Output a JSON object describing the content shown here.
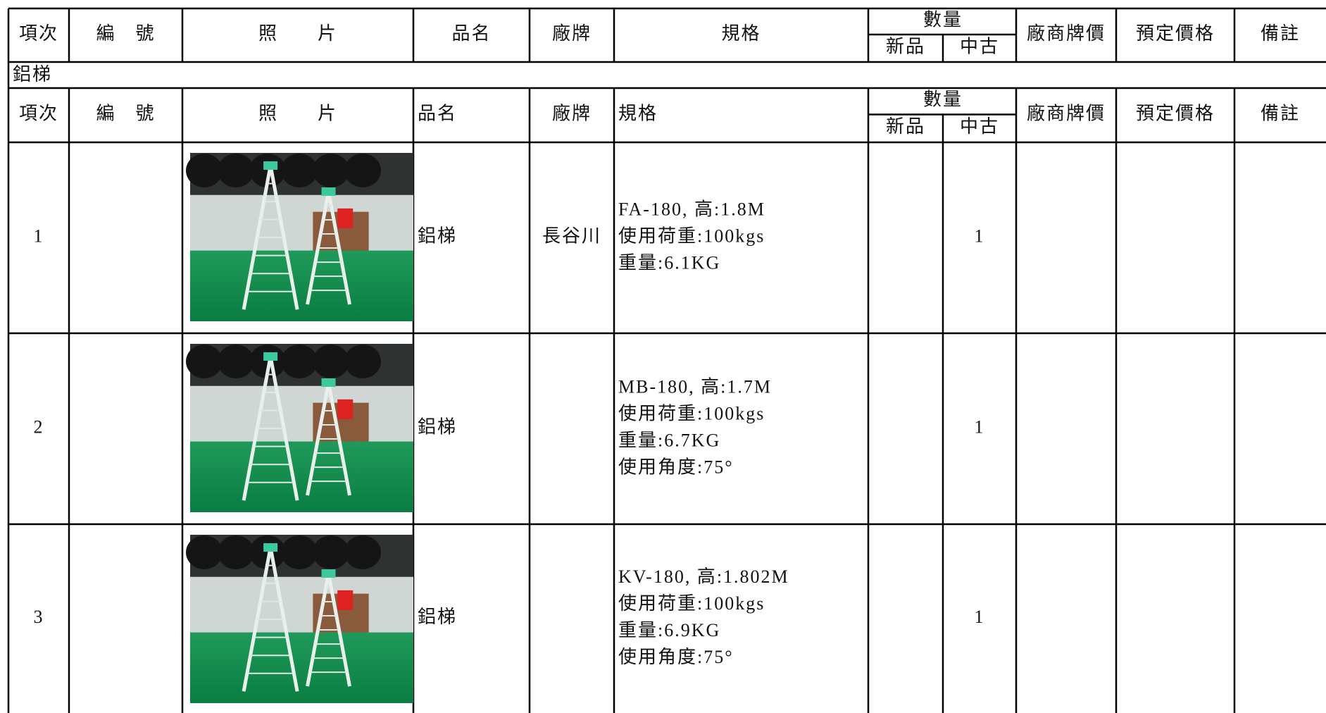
{
  "top_header": [
    "項次",
    "編　號",
    "照　　片",
    "品名",
    "廠牌",
    "規格",
    "數量",
    "新品",
    "中古",
    "廠商牌價",
    "預定價格",
    "備註"
  ],
  "section": {
    "title": "鋁梯",
    "header": [
      "項次",
      "編　號",
      "照　　片",
      "品名",
      "廠牌",
      "規格",
      "數量",
      "新品",
      "中古",
      "廠商牌價",
      "預定價格",
      "備註"
    ],
    "rows": [
      {
        "item": 1,
        "name": "鋁梯",
        "brand": "長谷川",
        "spec": [
          "FA-180, 高:1.8M",
          "使用荷重:100kgs",
          "重量:6.1KG"
        ],
        "used": 1
      },
      {
        "item": 2,
        "name": "鋁梯",
        "spec": [
          "MB-180, 高:1.7M",
          "使用荷重:100kgs",
          "重量:6.7KG",
          "使用角度:75°"
        ],
        "used": 1
      },
      {
        "item": 3,
        "name": "鋁梯",
        "spec": [
          "KV-180, 高:1.802M",
          "使用荷重:100kgs",
          "重量:6.9KG",
          "使用角度:75°"
        ],
        "used": 1
      }
    ]
  }
}
